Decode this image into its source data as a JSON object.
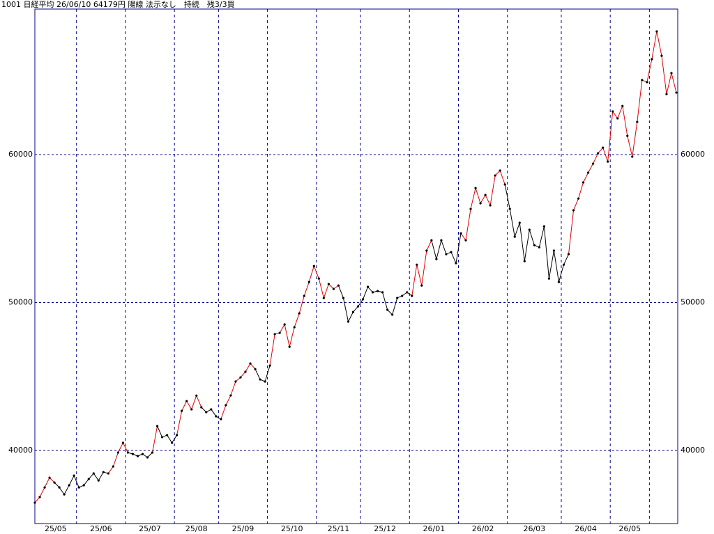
{
  "chart_data": {
    "type": "line",
    "title": "1001 日経平均 26/06/10 64179円 陽線 法示なし　持続　残3/3買",
    "x": [
      "25/05",
      "25/05",
      "25/05",
      "25/05",
      "25/05",
      "25/05",
      "25/05",
      "25/05",
      "25/05",
      "25/06",
      "25/06",
      "25/06",
      "25/06",
      "25/06",
      "25/06",
      "25/06",
      "25/06",
      "25/06",
      "25/06",
      "25/07",
      "25/07",
      "25/07",
      "25/07",
      "25/07",
      "25/07",
      "25/07",
      "25/07",
      "25/07",
      "25/07",
      "25/08",
      "25/08",
      "25/08",
      "25/08",
      "25/08",
      "25/08",
      "25/08",
      "25/08",
      "25/08",
      "25/09",
      "25/09",
      "25/09",
      "25/09",
      "25/09",
      "25/09",
      "25/09",
      "25/09",
      "25/09",
      "25/09",
      "25/10",
      "25/10",
      "25/10",
      "25/10",
      "25/10",
      "25/10",
      "25/10",
      "25/10",
      "25/10",
      "25/10",
      "25/11",
      "25/11",
      "25/11",
      "25/11",
      "25/11",
      "25/11",
      "25/11",
      "25/11",
      "25/11",
      "25/12",
      "25/12",
      "25/12",
      "25/12",
      "25/12",
      "25/12",
      "25/12",
      "25/12",
      "25/12",
      "25/12",
      "26/01",
      "26/01",
      "26/01",
      "26/01",
      "26/01",
      "26/01",
      "26/01",
      "26/01",
      "26/01",
      "26/01",
      "26/02",
      "26/02",
      "26/02",
      "26/02",
      "26/02",
      "26/02",
      "26/02",
      "26/02",
      "26/02",
      "26/02",
      "26/03",
      "26/03",
      "26/03",
      "26/03",
      "26/03",
      "26/03",
      "26/03",
      "26/03",
      "26/03",
      "26/03",
      "26/03",
      "26/04",
      "26/04",
      "26/04",
      "26/04",
      "26/04",
      "26/04",
      "26/04",
      "26/04",
      "26/04",
      "26/04",
      "26/05",
      "26/05",
      "26/05",
      "26/05",
      "26/05",
      "26/05",
      "26/05",
      "26/05",
      null,
      null,
      null,
      null,
      null,
      null
    ],
    "values": [
      36470,
      36850,
      37500,
      38160,
      37830,
      37500,
      37030,
      37650,
      38300,
      37500,
      37650,
      38070,
      38450,
      37970,
      38540,
      38450,
      38920,
      39860,
      40520,
      39860,
      39760,
      39620,
      39760,
      39530,
      39860,
      41650,
      40900,
      41040,
      40520,
      41040,
      42680,
      43340,
      42780,
      43710,
      42920,
      42590,
      42780,
      42310,
      42120,
      43060,
      43720,
      44660,
      44940,
      45320,
      45880,
      45500,
      44800,
      44660,
      45740,
      47860,
      47950,
      48520,
      47010,
      48330,
      49270,
      50450,
      51390,
      52470,
      51620,
      50310,
      51250,
      50920,
      51150,
      50310,
      48710,
      49360,
      49740,
      50220,
      51060,
      50690,
      50780,
      50690,
      49510,
      49180,
      50310,
      50450,
      50690,
      50450,
      52560,
      51150,
      53510,
      54210,
      52940,
      54210,
      53270,
      53410,
      52660,
      54680,
      54210,
      56330,
      57740,
      56710,
      57270,
      56570,
      58590,
      58920,
      57980,
      56330,
      54450,
      55390,
      52800,
      54920,
      53880,
      53740,
      55150,
      51620,
      53510,
      51390,
      52560,
      53270,
      56240,
      57030,
      58120,
      58780,
      59390,
      60090,
      60470,
      59530,
      62920,
      62450,
      63290,
      61270,
      59860,
      62210,
      65040,
      64900,
      66450,
      68330,
      66680,
      64090,
      65510,
      64190
    ],
    "segment_colors": [
      "#e00000",
      "#e00000",
      "#e00000",
      "#e00000",
      "#000000",
      "#000000",
      "#000000",
      "#000000",
      "#000000",
      "#000000",
      "#000000",
      "#000000",
      "#000000",
      "#000000",
      "#000000",
      "#e00000",
      "#e00000",
      "#e00000",
      "#e00000",
      "#000000",
      "#000000",
      "#000000",
      "#000000",
      "#000000",
      "#e00000",
      "#000000",
      "#000000",
      "#000000",
      "#000000",
      "#e00000",
      "#e00000",
      "#e00000",
      "#e00000",
      "#e00000",
      "#000000",
      "#000000",
      "#000000",
      "#000000",
      "#e00000",
      "#e00000",
      "#e00000",
      "#e00000",
      "#e00000",
      "#e00000",
      "#e00000",
      "#000000",
      "#000000",
      "#000000",
      "#e00000",
      "#e00000",
      "#e00000",
      "#e00000",
      "#e00000",
      "#e00000",
      "#e00000",
      "#e00000",
      "#e00000",
      "#e00000",
      "#e00000",
      "#e00000",
      "#e00000",
      "#e00000",
      "#000000",
      "#000000",
      "#000000",
      "#000000",
      "#000000",
      "#000000",
      "#000000",
      "#000000",
      "#000000",
      "#000000",
      "#000000",
      "#000000",
      "#000000",
      "#000000",
      "#000000",
      "#e00000",
      "#e00000",
      "#e00000",
      "#e00000",
      "#000000",
      "#000000",
      "#000000",
      "#000000",
      "#000000",
      "#000000",
      "#e00000",
      "#e00000",
      "#e00000",
      "#e00000",
      "#e00000",
      "#e00000",
      "#e00000",
      "#e00000",
      "#e00000",
      "#000000",
      "#000000",
      "#000000",
      "#000000",
      "#000000",
      "#000000",
      "#000000",
      "#000000",
      "#000000",
      "#000000",
      "#000000",
      "#000000",
      "#000000",
      "#e00000",
      "#e00000",
      "#e00000",
      "#e00000",
      "#e00000",
      "#e00000",
      "#e00000",
      "#e00000",
      "#e00000",
      "#e00000",
      "#e00000",
      "#e00000",
      "#e00000",
      "#e00000",
      "#e00000",
      "#e00000",
      "#e00000",
      "#e00000",
      "#e00000",
      "#e00000",
      "#e00000",
      "#e00000"
    ],
    "point_color": "#000000",
    "ylim": [
      35060,
      69840
    ],
    "yticks": [
      40000,
      50000,
      60000
    ],
    "grid": true,
    "grid_color": "#00008b"
  }
}
